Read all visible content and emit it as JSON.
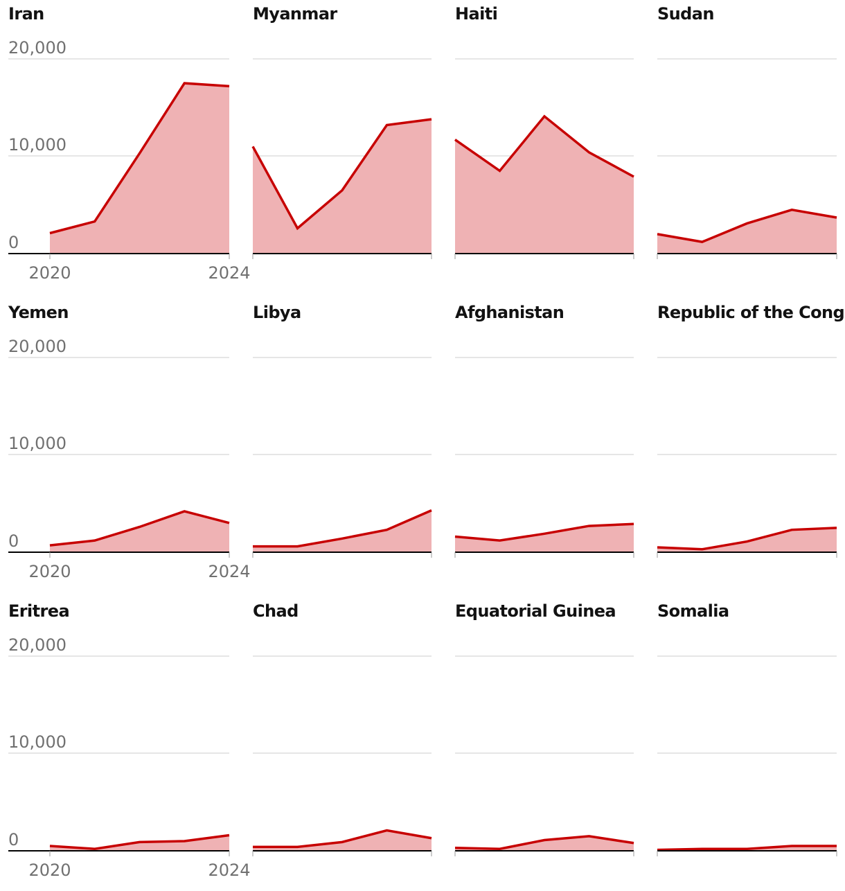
{
  "colors": {
    "line": "#c70000",
    "area": "#efb2b4",
    "grid": "#cccccc",
    "axis": "#000000",
    "tick_text": "#707070",
    "title": "#121212"
  },
  "chart_data": [
    {
      "type": "area",
      "title": "Iran",
      "x": [
        2020,
        2021,
        2022,
        2023,
        2024
      ],
      "values": [
        2100,
        3300,
        10300,
        17500,
        17200
      ],
      "ylim": [
        0,
        20000
      ],
      "yticks": [
        "20,000",
        "10,000",
        "0"
      ],
      "xticks": [
        "2020",
        "2024"
      ]
    },
    {
      "type": "area",
      "title": "Myanmar",
      "x": [
        2020,
        2021,
        2022,
        2023,
        2024
      ],
      "values": [
        11000,
        2600,
        6500,
        13200,
        13800
      ],
      "ylim": [
        0,
        20000
      ],
      "yticks": [],
      "xticks": []
    },
    {
      "type": "area",
      "title": "Haiti",
      "x": [
        2020,
        2021,
        2022,
        2023,
        2024
      ],
      "values": [
        11700,
        8500,
        14100,
        10400,
        7900
      ],
      "ylim": [
        0,
        20000
      ],
      "yticks": [],
      "xticks": []
    },
    {
      "type": "area",
      "title": "Sudan",
      "x": [
        2020,
        2021,
        2022,
        2023,
        2024
      ],
      "values": [
        2000,
        1200,
        3100,
        4500,
        3700
      ],
      "ylim": [
        0,
        20000
      ],
      "yticks": [],
      "xticks": []
    },
    {
      "type": "area",
      "title": "Yemen",
      "x": [
        2020,
        2021,
        2022,
        2023,
        2024
      ],
      "values": [
        700,
        1200,
        2600,
        4200,
        3000
      ],
      "ylim": [
        0,
        20000
      ],
      "yticks": [
        "20,000",
        "10,000",
        "0"
      ],
      "xticks": [
        "2020",
        "2024"
      ]
    },
    {
      "type": "area",
      "title": "Libya",
      "x": [
        2020,
        2021,
        2022,
        2023,
        2024
      ],
      "values": [
        600,
        600,
        1400,
        2300,
        4300
      ],
      "ylim": [
        0,
        20000
      ],
      "yticks": [],
      "xticks": []
    },
    {
      "type": "area",
      "title": "Afghanistan",
      "x": [
        2020,
        2021,
        2022,
        2023,
        2024
      ],
      "values": [
        1600,
        1200,
        1900,
        2700,
        2900
      ],
      "ylim": [
        0,
        20000
      ],
      "yticks": [],
      "xticks": []
    },
    {
      "type": "area",
      "title": "Republic of the Congo",
      "x": [
        2020,
        2021,
        2022,
        2023,
        2024
      ],
      "values": [
        500,
        300,
        1100,
        2300,
        2500
      ],
      "ylim": [
        0,
        20000
      ],
      "yticks": [],
      "xticks": []
    },
    {
      "type": "area",
      "title": "Eritrea",
      "x": [
        2020,
        2021,
        2022,
        2023,
        2024
      ],
      "values": [
        500,
        200,
        900,
        1000,
        1600
      ],
      "ylim": [
        0,
        20000
      ],
      "yticks": [
        "20,000",
        "10,000",
        "0"
      ],
      "xticks": [
        "2020",
        "2024"
      ]
    },
    {
      "type": "area",
      "title": "Chad",
      "x": [
        2020,
        2021,
        2022,
        2023,
        2024
      ],
      "values": [
        400,
        400,
        900,
        2100,
        1300
      ],
      "ylim": [
        0,
        20000
      ],
      "yticks": [],
      "xticks": []
    },
    {
      "type": "area",
      "title": "Equatorial Guinea",
      "x": [
        2020,
        2021,
        2022,
        2023,
        2024
      ],
      "values": [
        300,
        200,
        1100,
        1500,
        800
      ],
      "ylim": [
        0,
        20000
      ],
      "yticks": [],
      "xticks": []
    },
    {
      "type": "area",
      "title": "Somalia",
      "x": [
        2020,
        2021,
        2022,
        2023,
        2024
      ],
      "values": [
        100,
        200,
        200,
        500,
        500
      ],
      "ylim": [
        0,
        20000
      ],
      "yticks": [],
      "xticks": []
    }
  ]
}
